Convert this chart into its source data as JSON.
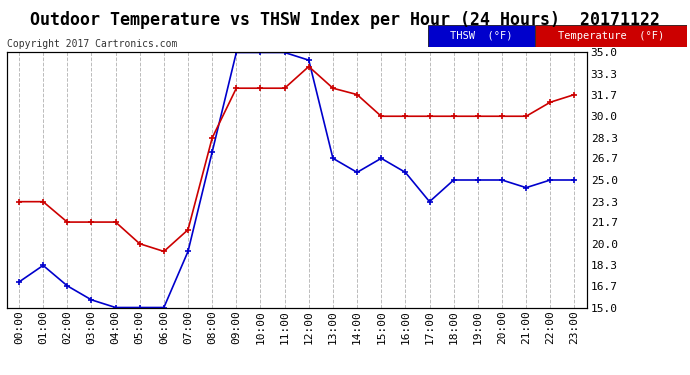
{
  "title": "Outdoor Temperature vs THSW Index per Hour (24 Hours)  20171122",
  "copyright": "Copyright 2017 Cartronics.com",
  "hours": [
    "00:00",
    "01:00",
    "02:00",
    "03:00",
    "04:00",
    "05:00",
    "06:00",
    "07:00",
    "08:00",
    "09:00",
    "10:00",
    "11:00",
    "12:00",
    "13:00",
    "14:00",
    "15:00",
    "16:00",
    "17:00",
    "18:00",
    "19:00",
    "20:00",
    "21:00",
    "22:00",
    "23:00"
  ],
  "thsw": [
    17.0,
    18.3,
    16.7,
    15.6,
    15.0,
    15.0,
    15.0,
    19.4,
    27.2,
    35.0,
    35.0,
    35.0,
    34.4,
    26.7,
    25.6,
    26.7,
    25.6,
    23.3,
    25.0,
    25.0,
    25.0,
    24.4,
    25.0,
    25.0
  ],
  "temperature": [
    23.3,
    23.3,
    21.7,
    21.7,
    21.7,
    20.0,
    19.4,
    21.1,
    28.3,
    32.2,
    32.2,
    32.2,
    33.9,
    32.2,
    31.7,
    30.0,
    30.0,
    30.0,
    30.0,
    30.0,
    30.0,
    30.0,
    31.1,
    31.7
  ],
  "thsw_color": "#0000cc",
  "temp_color": "#cc0000",
  "ylim_min": 15.0,
  "ylim_max": 35.0,
  "yticks": [
    15.0,
    16.7,
    18.3,
    20.0,
    21.7,
    23.3,
    25.0,
    26.7,
    28.3,
    30.0,
    31.7,
    33.3,
    35.0
  ],
  "bg_color": "#ffffff",
  "grid_color": "#bbbbbb",
  "title_fontsize": 12,
  "copyright_fontsize": 7,
  "tick_fontsize": 8,
  "legend_thsw_label": "THSW  (°F)",
  "legend_temp_label": "Temperature  (°F)",
  "legend_thsw_bg": "#0000cc",
  "legend_temp_bg": "#cc0000"
}
